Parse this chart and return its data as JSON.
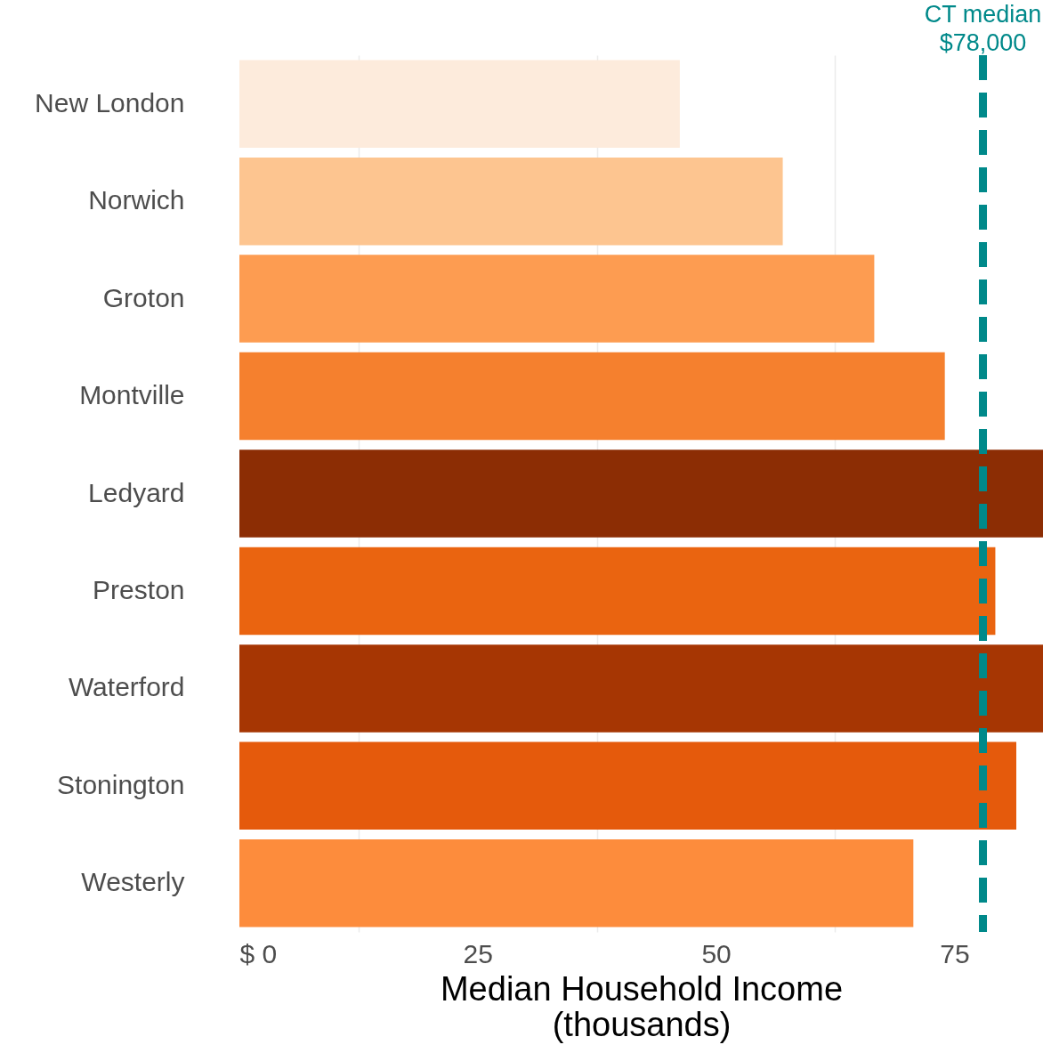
{
  "chart_data": {
    "type": "bar",
    "orientation": "horizontal",
    "xlabel": "Median Household Income (thousands)",
    "categories": [
      "New London",
      "Norwich",
      "Groton",
      "Montville",
      "Ledyard",
      "Preston",
      "Waterford",
      "Stonington",
      "Westerly"
    ],
    "values": [
      46.2,
      57.0,
      66.6,
      74.0,
      84.3,
      79.3,
      84.3,
      81.5,
      70.7
    ],
    "colors": [
      "#fdebdc",
      "#fdc590",
      "#fd9c51",
      "#f5802e",
      "#8c2d04",
      "#ea6410",
      "#a63603",
      "#e55a0c",
      "#fd8c3c"
    ],
    "xlim": [
      0,
      84.3
    ],
    "xticks": [
      {
        "value": 0,
        "label": "$ 0"
      },
      {
        "value": 12.5,
        "label": null
      },
      25,
      {
        "value": 37.5,
        "label": null
      },
      50,
      {
        "value": 62.5,
        "label": null
      },
      75
    ],
    "grid": "x",
    "ref_lines": [
      {
        "axis": "x",
        "value": 78,
        "label": "CT median\n$78,000",
        "color": "#00898a",
        "line_style": "dashed"
      }
    ]
  }
}
